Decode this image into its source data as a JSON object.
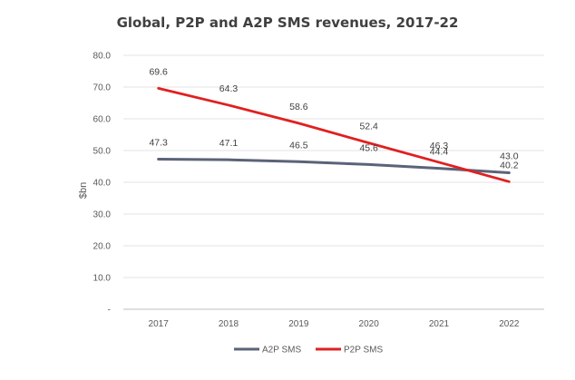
{
  "chart_data": {
    "type": "line",
    "title": "Global, P2P and A2P SMS revenues, 2017-22",
    "xlabel": "",
    "ylabel": "$bn",
    "categories": [
      "2017",
      "2018",
      "2019",
      "2020",
      "2021",
      "2022"
    ],
    "ylim": [
      0,
      80
    ],
    "yticks": [
      "-",
      "10.0",
      "20.0",
      "30.0",
      "40.0",
      "50.0",
      "60.0",
      "70.0",
      "80.0"
    ],
    "grid": true,
    "legend_position": "bottom",
    "series": [
      {
        "name": "A2P SMS",
        "color": "#5b6378",
        "values": [
          47.3,
          47.1,
          46.5,
          45.6,
          44.4,
          43.0
        ],
        "labels": [
          "47.3",
          "47.1",
          "46.5",
          "45.6",
          "44.4",
          "43.0"
        ]
      },
      {
        "name": "P2P SMS",
        "color": "#e02020",
        "values": [
          69.6,
          64.3,
          58.6,
          52.4,
          46.3,
          40.2
        ],
        "labels": [
          "69.6",
          "64.3",
          "58.6",
          "52.4",
          "46.3",
          "40.2"
        ]
      }
    ]
  }
}
